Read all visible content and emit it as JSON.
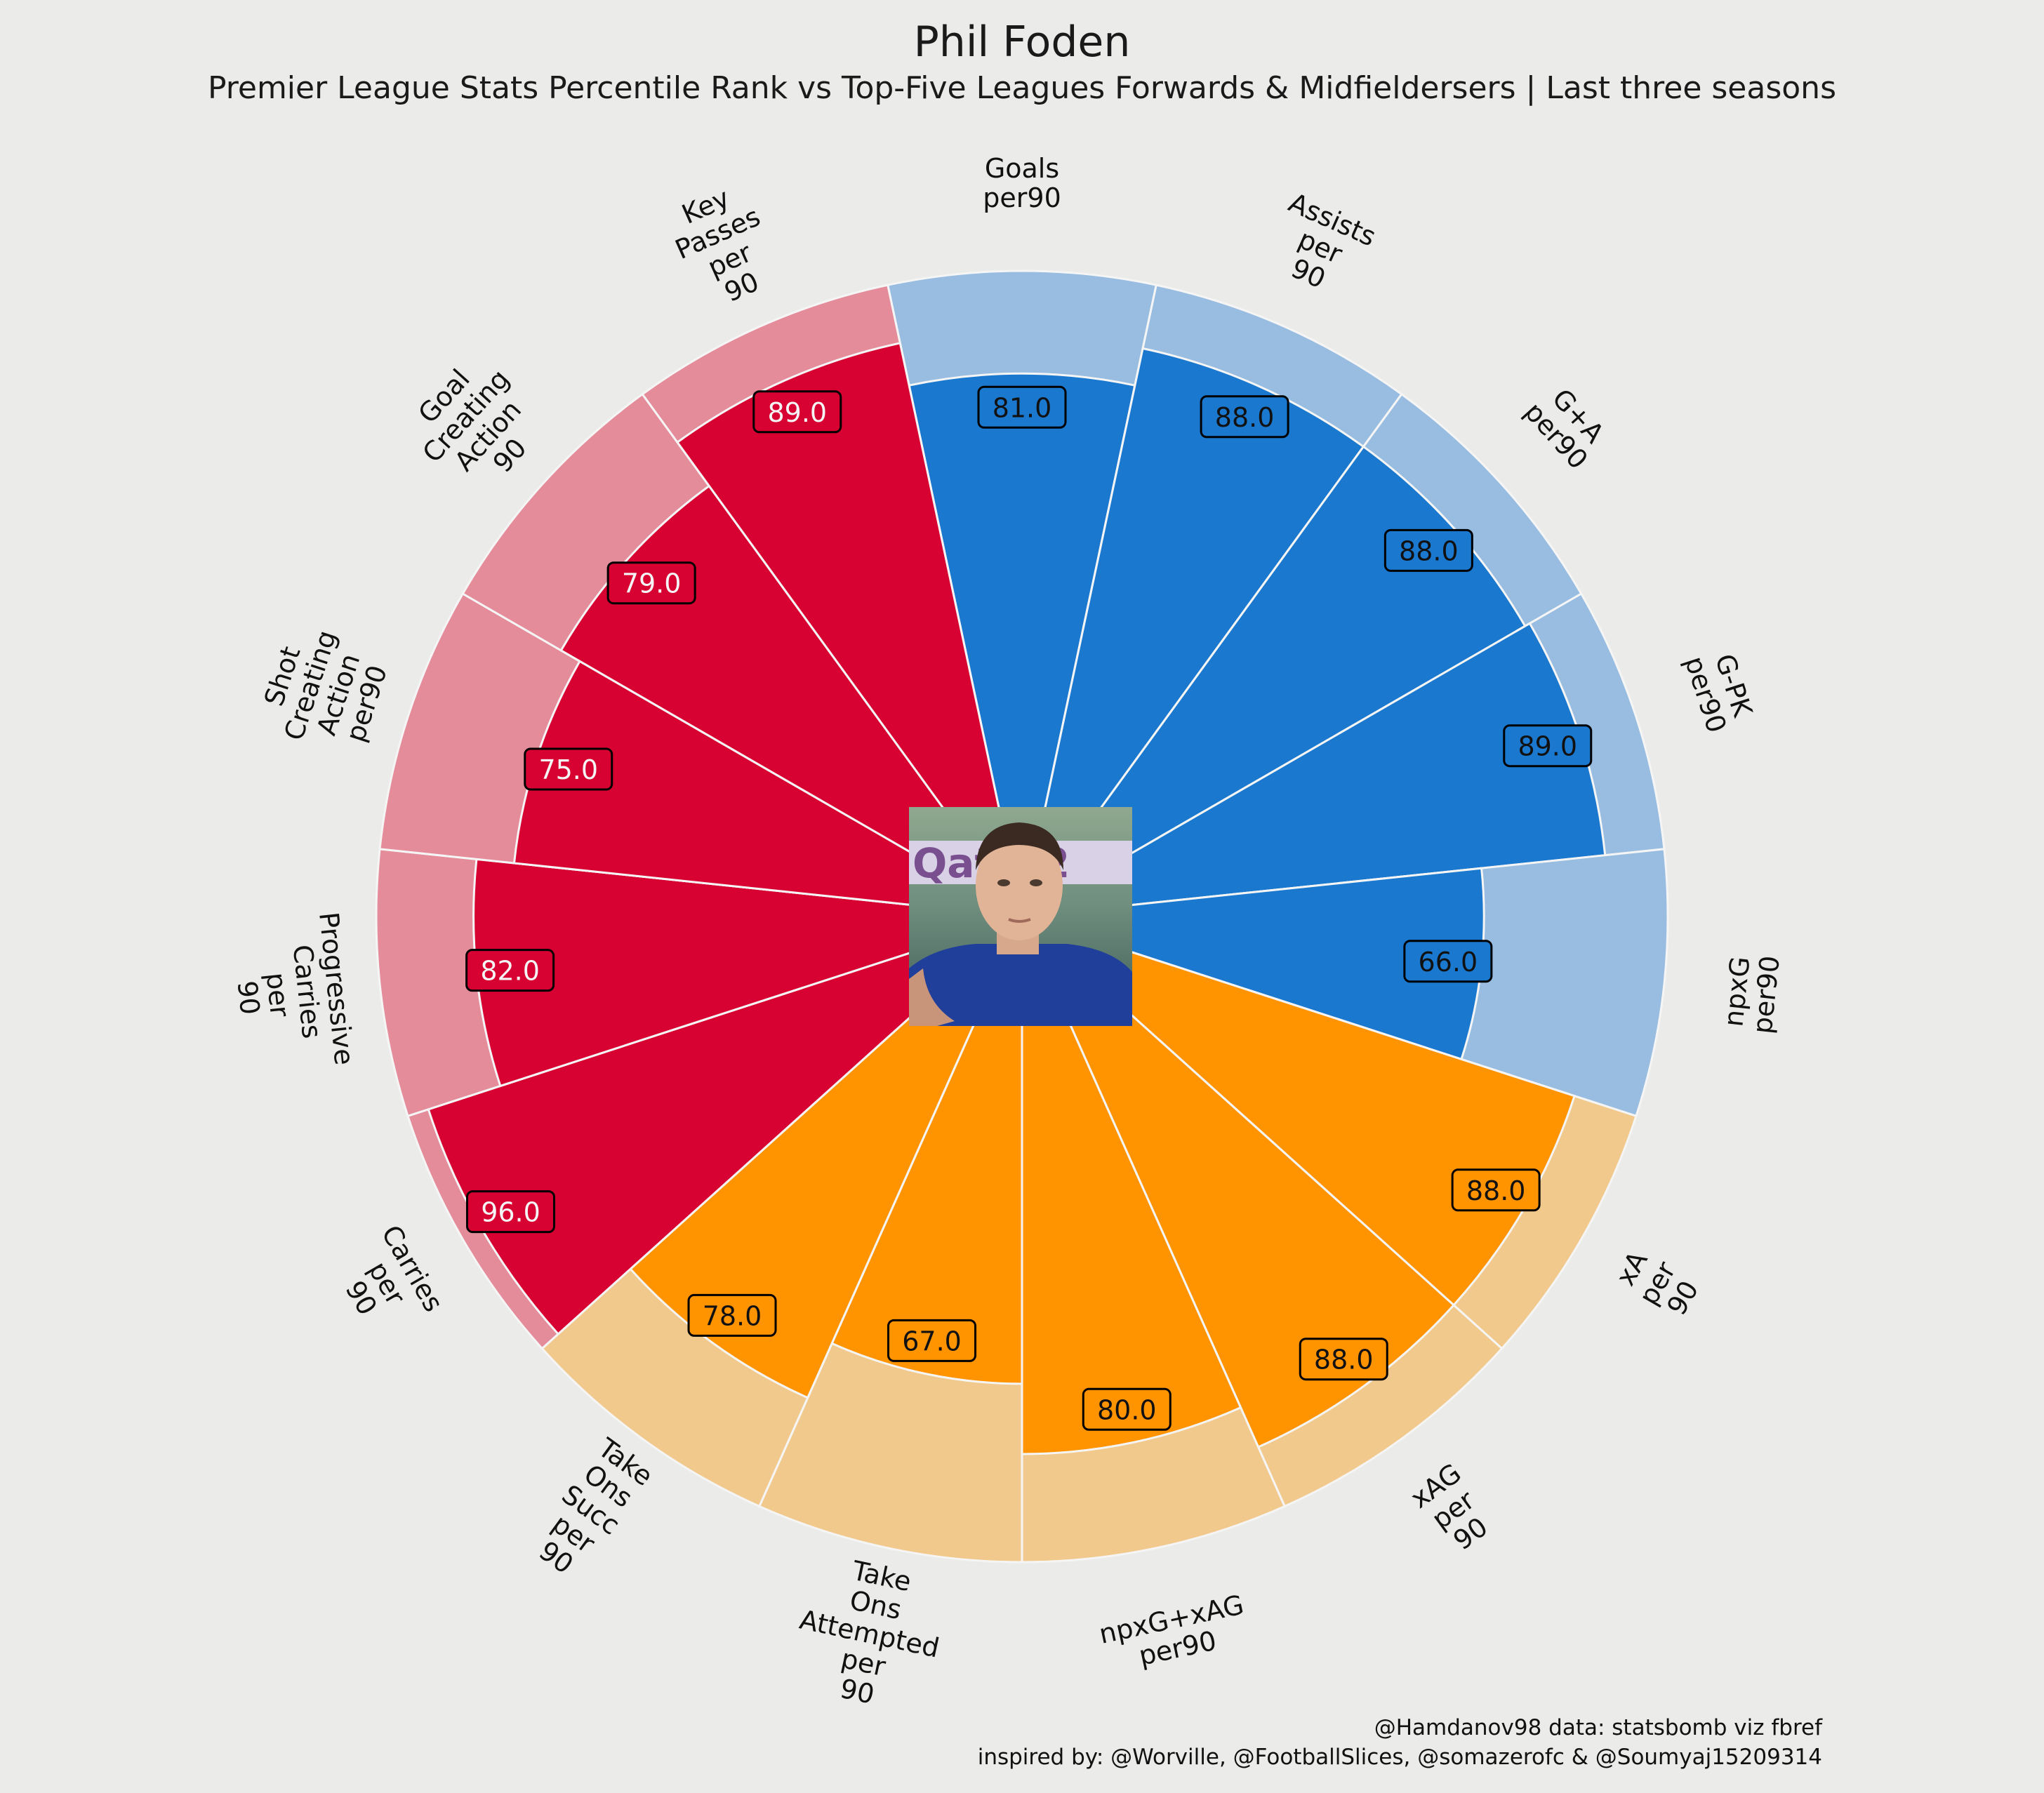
{
  "header": {
    "title": "Phil Foden",
    "subtitle": "Premier League Stats Percentile Rank vs Top-Five Leagues Forwards & Midfieldersers | Last three seasons"
  },
  "credits": {
    "line1": "@Hamdanov98 data: statsbomb viz fbref",
    "line2": "inspired by: @Worville, @FootballSlices, @somazerofc & @Soumyaj15209314"
  },
  "player_photo": {
    "subject": "Phil Foden",
    "description": "player-headshot"
  },
  "colors": {
    "background": "#ebebe9",
    "attacking": "#1a78cf",
    "attacking_light": "#98bde1",
    "possession": "#ff9300",
    "possession_light": "#f2c98c",
    "creation": "#d70232",
    "creation_light": "#e58c9b",
    "edge": "#f5f5f5",
    "value_text_dark": "#111111",
    "value_text_light": "#f5f5f5"
  },
  "chart_data": {
    "type": "radial-bar",
    "range": [
      0,
      100
    ],
    "direction": "clockwise-from-top",
    "groups": [
      "attacking",
      "possession",
      "creation"
    ],
    "params": [
      {
        "label": "Goals\nper90",
        "value": 81.0,
        "display": "81.0",
        "group": "attacking"
      },
      {
        "label": "Assists\nper\n90",
        "value": 88.0,
        "display": "88.0",
        "group": "attacking"
      },
      {
        "label": "G+A\nper90",
        "value": 88.0,
        "display": "88.0",
        "group": "attacking"
      },
      {
        "label": "G-PK\nper90",
        "value": 89.0,
        "display": "89.0",
        "group": "attacking"
      },
      {
        "label": "npxG\nper90",
        "value": 66.0,
        "display": "66.0",
        "group": "attacking"
      },
      {
        "label": "xA\nper\n90",
        "value": 88.0,
        "display": "88.0",
        "group": "possession"
      },
      {
        "label": "xAG\nper\n90",
        "value": 88.0,
        "display": "88.0",
        "group": "possession"
      },
      {
        "label": "npxG+xAG\nper90",
        "value": 80.0,
        "display": "80.0",
        "group": "possession"
      },
      {
        "label": "Take\nOns\nAttempted\nper\n90",
        "value": 67.0,
        "display": "67.0",
        "group": "possession"
      },
      {
        "label": "Take\nOns\nSucc\nper\n90",
        "value": 78.0,
        "display": "78.0",
        "group": "possession"
      },
      {
        "label": "Carries\nper\n90",
        "value": 96.0,
        "display": "96.0",
        "group": "creation"
      },
      {
        "label": "Progressive\nCarries\nper\n90",
        "value": 82.0,
        "display": "82.0",
        "group": "creation"
      },
      {
        "label": "Shot\nCreating\nAction\nper90",
        "value": 75.0,
        "display": "75.0",
        "group": "creation"
      },
      {
        "label": "Goal\nCreating\nAction\n90",
        "value": 79.0,
        "display": "79.0",
        "group": "creation"
      },
      {
        "label": "Key\nPasses\nper\n90",
        "value": 89.0,
        "display": "89.0",
        "group": "creation"
      }
    ]
  }
}
